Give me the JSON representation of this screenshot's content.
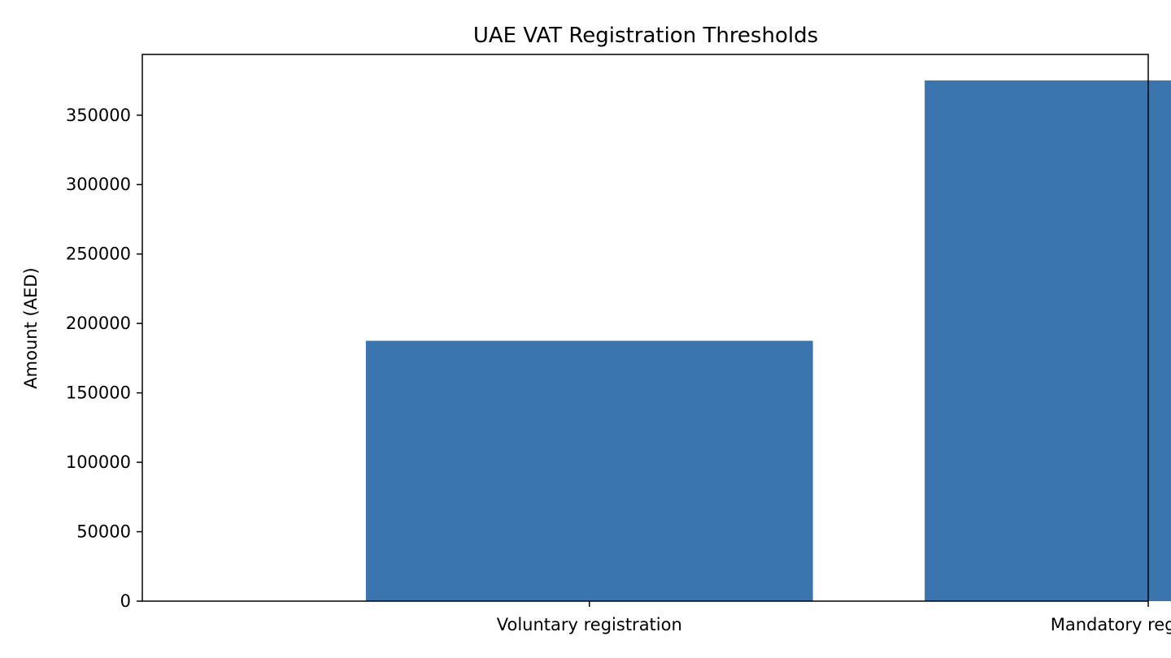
{
  "chart_data": {
    "type": "bar",
    "title": "UAE VAT Registration Thresholds",
    "xlabel": "",
    "ylabel": "Amount (AED)",
    "categories": [
      "Voluntary registration",
      "Mandatory registration"
    ],
    "values": [
      187500,
      375000
    ],
    "ylim": [
      0,
      393750
    ],
    "yticks": [
      0,
      50000,
      100000,
      150000,
      200000,
      250000,
      300000,
      350000
    ],
    "grid": false,
    "bar_color": "#3b75af",
    "legend": "none"
  }
}
